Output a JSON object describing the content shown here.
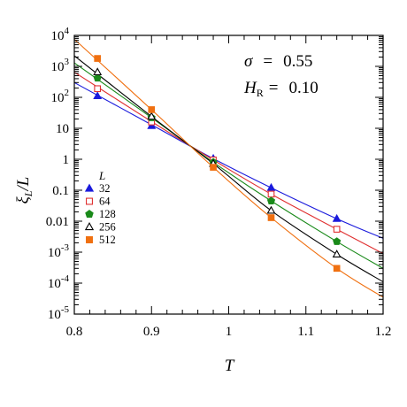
{
  "chart_data": {
    "type": "line",
    "xlabel": "T",
    "ylabel": "ξL/L",
    "ylabel_parts": {
      "xi": "ξ",
      "sub": "L",
      "rest": "/L"
    },
    "xlim": [
      0.8,
      1.2
    ],
    "ylim": [
      1e-05,
      10000.0
    ],
    "yscale": "log",
    "x_ticks": [
      "0.8",
      "0.9",
      "1",
      "1.1",
      "1.2"
    ],
    "y_ticks": [
      {
        "exp": -5,
        "text": "10",
        "sup": "-5"
      },
      {
        "exp": -4,
        "text": "10",
        "sup": "-4"
      },
      {
        "exp": -3,
        "text": "10",
        "sup": "-3"
      },
      {
        "exp": -2,
        "text": "0.01"
      },
      {
        "exp": -1,
        "text": "0.1"
      },
      {
        "exp": 0,
        "text": "1"
      },
      {
        "exp": 1,
        "text": "10"
      },
      {
        "exp": 2,
        "text": "10",
        "sup": "2"
      },
      {
        "exp": 3,
        "text": "10",
        "sup": "3"
      },
      {
        "exp": 4,
        "text": "10",
        "sup": "4"
      }
    ],
    "annotations": {
      "sigma": {
        "symbol": "σ",
        "eq": "=",
        "value": "0.55"
      },
      "hr": {
        "symbol": "H",
        "sub": "R",
        "eq": "=",
        "value": "0.10"
      }
    },
    "legend": {
      "title": "L",
      "placement": "left-middle"
    },
    "series": [
      {
        "name": "32",
        "color": "#1a1adc",
        "marker": "triangle-filled",
        "x": [
          0.83,
          0.9,
          0.98,
          1.055,
          1.14
        ],
        "y": [
          110,
          12,
          1.05,
          0.12,
          0.012
        ],
        "fit_x": [
          0.8,
          0.9,
          0.98,
          1.055,
          1.14,
          1.2
        ],
        "fit_y": [
          300,
          13,
          1.05,
          0.12,
          0.012,
          0.0028
        ]
      },
      {
        "name": "64",
        "color": "#e03030",
        "marker": "square-open",
        "x": [
          0.83,
          0.9,
          0.98,
          1.055,
          1.14
        ],
        "y": [
          190,
          16,
          0.95,
          0.075,
          0.0055
        ],
        "fit_x": [
          0.8,
          0.9,
          0.98,
          1.055,
          1.14,
          1.2
        ],
        "fit_y": [
          650,
          16.5,
          0.95,
          0.075,
          0.0055,
          0.0009
        ]
      },
      {
        "name": "128",
        "color": "#1a8a1a",
        "marker": "pentagon-filled",
        "x": [
          0.83,
          0.9,
          0.98,
          1.055,
          1.14
        ],
        "y": [
          420,
          22,
          0.8,
          0.045,
          0.0022
        ],
        "fit_x": [
          0.8,
          0.9,
          0.98,
          1.055,
          1.14,
          1.2
        ],
        "fit_y": [
          1300,
          22,
          0.8,
          0.045,
          0.0022,
          0.0003
        ]
      },
      {
        "name": "256",
        "color": "#000000",
        "marker": "triangle-open",
        "x": [
          0.83,
          0.9,
          0.98,
          1.055,
          1.14
        ],
        "y": [
          650,
          24,
          0.72,
          0.022,
          0.00085
        ],
        "fit_x": [
          0.8,
          0.9,
          0.98,
          1.055,
          1.14,
          1.2
        ],
        "fit_y": [
          2200,
          24,
          0.72,
          0.022,
          0.00085,
          0.00011
        ]
      },
      {
        "name": "512",
        "color": "#f07010",
        "marker": "square-filled",
        "x": [
          0.83,
          0.9,
          0.98,
          1.055,
          1.14
        ],
        "y": [
          1800,
          40,
          0.55,
          0.013,
          0.0003
        ],
        "fit_x": [
          0.8,
          0.9,
          0.98,
          1.055,
          1.14,
          1.2
        ],
        "fit_y": [
          7500,
          40,
          0.55,
          0.013,
          0.0003,
          3.5e-05
        ]
      }
    ]
  }
}
